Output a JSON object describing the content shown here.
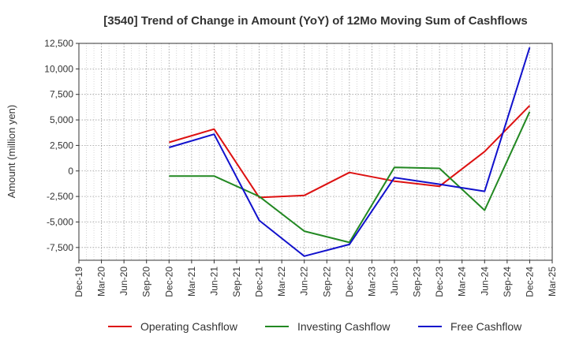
{
  "chart_data": {
    "type": "line",
    "title": "[3540]  Trend of Change in Amount (YoY) of 12Mo Moving Sum of Cashflows",
    "xlabel": "",
    "ylabel": "Amount (million yen)",
    "ylim": [
      -8750,
      12500
    ],
    "yticks": [
      12500,
      10000,
      7500,
      5000,
      2500,
      0,
      -2500,
      -5000,
      -7500
    ],
    "ytick_labels": [
      "12,500",
      "10,000",
      "7,500",
      "5,000",
      "2,500",
      "0",
      "-2,500",
      "-5,000",
      "-7,500"
    ],
    "categories": [
      "Dec-19",
      "Mar-20",
      "Jun-20",
      "Sep-20",
      "Dec-20",
      "Mar-21",
      "Jun-21",
      "Sep-21",
      "Dec-21",
      "Mar-22",
      "Jun-22",
      "Sep-22",
      "Dec-22",
      "Mar-23",
      "Jun-23",
      "Sep-23",
      "Dec-23",
      "Mar-24",
      "Jun-24",
      "Sep-24",
      "Dec-24",
      "Mar-25"
    ],
    "grid": true,
    "legend_position": "bottom",
    "series": [
      {
        "name": "Operating Cashflow",
        "color": "#dd1111",
        "values": [
          null,
          null,
          null,
          null,
          2800,
          null,
          4100,
          null,
          -2600,
          null,
          -2400,
          null,
          -150,
          null,
          -1000,
          null,
          -1500,
          null,
          1900,
          null,
          6400,
          null
        ]
      },
      {
        "name": "Investing Cashflow",
        "color": "#228822",
        "values": [
          null,
          null,
          null,
          null,
          -500,
          null,
          -500,
          null,
          -2500,
          null,
          -5900,
          null,
          -7000,
          null,
          350,
          null,
          250,
          null,
          -3850,
          null,
          5800,
          null
        ]
      },
      {
        "name": "Free Cashflow",
        "color": "#1111cc",
        "values": [
          null,
          null,
          null,
          null,
          2300,
          null,
          3600,
          null,
          -4850,
          null,
          -8350,
          null,
          -7200,
          null,
          -650,
          null,
          -1300,
          null,
          -2000,
          null,
          12100,
          null
        ]
      }
    ]
  }
}
